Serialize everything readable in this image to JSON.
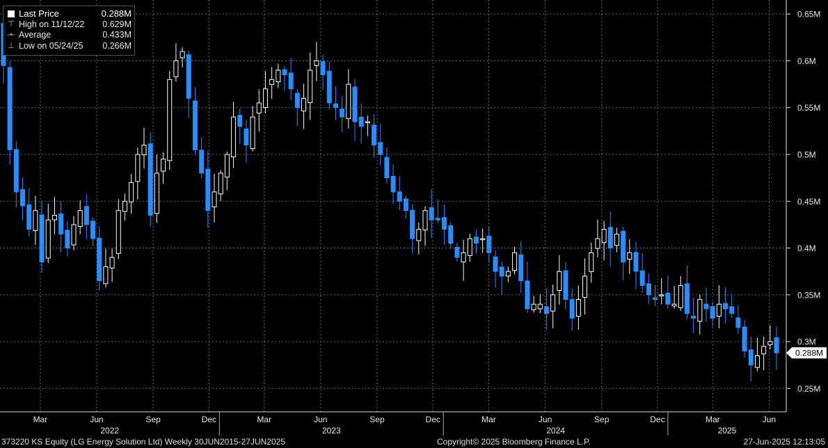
{
  "legend": {
    "items": [
      {
        "label": "Last Price",
        "value": "0.288M"
      },
      {
        "label": "High on 11/12/22",
        "value": "0.629M"
      },
      {
        "label": "Average",
        "value": "0.433M"
      },
      {
        "label": "Low on 05/24/25",
        "value": "0.266M"
      }
    ]
  },
  "footer": {
    "left": "373220 KS Equity (LG Energy Solution Ltd)  Weekly 30JUN2015-27JUN2025",
    "center": "Copyright© 2025 Bloomberg Finance L.P.",
    "right": "27-Jun-2025 12:13:05"
  },
  "colors": {
    "background": "#000000",
    "up": "#000000",
    "up_outline": "#ffffff",
    "down": "#2a8cff",
    "grid": "#6a6a6a",
    "last_price_label_bg": "#ffffff"
  },
  "chart_data": {
    "type": "candlestick",
    "interval": "weekly",
    "y_unit": "M (KRW)",
    "ylim": [
      0.225,
      0.665
    ],
    "y_ticks": [
      0.25,
      0.3,
      0.35,
      0.4,
      0.45,
      0.5,
      0.55,
      0.6,
      0.65
    ],
    "y_tick_labels": [
      "0.25M",
      "0.3M",
      "0.35M",
      "0.4M",
      "0.45M",
      "0.5M",
      "0.55M",
      "0.6M",
      "0.65M"
    ],
    "x_month_labels": [
      {
        "date": "2022-03",
        "label": "Mar"
      },
      {
        "date": "2022-06",
        "label": "Jun"
      },
      {
        "date": "2022-09",
        "label": "Sep"
      },
      {
        "date": "2022-12",
        "label": "Dec"
      },
      {
        "date": "2023-03",
        "label": "Mar"
      },
      {
        "date": "2023-06",
        "label": "Jun"
      },
      {
        "date": "2023-09",
        "label": "Sep"
      },
      {
        "date": "2023-12",
        "label": "Dec"
      },
      {
        "date": "2024-03",
        "label": "Mar"
      },
      {
        "date": "2024-06",
        "label": "Jun"
      },
      {
        "date": "2024-09",
        "label": "Sep"
      },
      {
        "date": "2024-12",
        "label": "Dec"
      },
      {
        "date": "2025-03",
        "label": "Mar"
      },
      {
        "date": "2025-06",
        "label": "Jun"
      }
    ],
    "x_year_labels": [
      {
        "date": "2022",
        "label": "2022"
      },
      {
        "date": "2023",
        "label": "2023"
      },
      {
        "date": "2024",
        "label": "2024"
      },
      {
        "date": "2025",
        "label": "2025"
      }
    ],
    "last_price": {
      "value": 0.288,
      "label": "0.288M"
    },
    "high": {
      "date": "11/12/22",
      "value": 0.629
    },
    "average": 0.433,
    "low": {
      "date": "05/24/25",
      "value": 0.266
    },
    "weekly_closes_approx": [
      0.595,
      0.505,
      0.46,
      0.445,
      0.42,
      0.44,
      0.385,
      0.43,
      0.435,
      0.415,
      0.4,
      0.425,
      0.44,
      0.425,
      0.41,
      0.365,
      0.38,
      0.39,
      0.44,
      0.45,
      0.47,
      0.5,
      0.51,
      0.435,
      0.48,
      0.495,
      0.58,
      0.6,
      0.61,
      0.56,
      0.505,
      0.48,
      0.44,
      0.46,
      0.48,
      0.5,
      0.54,
      0.53,
      0.51,
      0.54,
      0.555,
      0.57,
      0.58,
      0.59,
      0.585,
      0.57,
      0.55,
      0.56,
      0.59,
      0.6,
      0.585,
      0.555,
      0.55,
      0.54,
      0.575,
      0.535,
      0.53,
      0.535,
      0.51,
      0.5,
      0.475,
      0.46,
      0.45,
      0.44,
      0.41,
      0.42,
      0.44,
      0.43,
      0.43,
      0.42,
      0.405,
      0.39,
      0.395,
      0.41,
      0.405,
      0.41,
      0.395,
      0.375,
      0.37,
      0.375,
      0.395,
      0.365,
      0.335,
      0.34,
      0.34,
      0.33,
      0.35,
      0.375,
      0.345,
      0.325,
      0.345,
      0.37,
      0.395,
      0.41,
      0.42,
      0.4,
      0.415,
      0.385,
      0.395,
      0.375,
      0.36,
      0.35,
      0.345,
      0.35,
      0.34,
      0.34,
      0.36,
      0.33,
      0.325,
      0.345,
      0.335,
      0.325,
      0.34,
      0.335,
      0.33,
      0.315,
      0.29,
      0.275,
      0.285,
      0.295,
      0.3,
      0.288
    ]
  }
}
